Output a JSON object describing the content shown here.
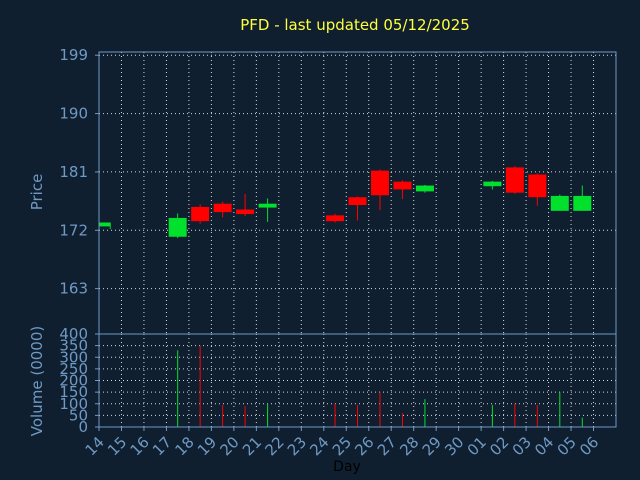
{
  "chart_data": {
    "type": "candlestick",
    "title": "PFD - last updated 05/12/2025",
    "xlabel": "Day",
    "colors": {
      "up": "#00e02c",
      "down": "#ff0000",
      "background": "#0f1f30",
      "axis": "#6f9ac4",
      "title": "#ffff3c",
      "grid": "#d8d8d8"
    },
    "days": [
      "14",
      "15",
      "16",
      "17",
      "18",
      "19",
      "20",
      "21",
      "22",
      "23",
      "24",
      "25",
      "26",
      "27",
      "28",
      "29",
      "30",
      "01",
      "02",
      "03",
      "04",
      "05",
      "06"
    ],
    "price_panel": {
      "ylabel": "Price",
      "yticks": [
        163,
        172,
        181,
        190,
        199
      ],
      "ylim": [
        156,
        199.5
      ],
      "candles": [
        {
          "day": "14",
          "open": 172.6,
          "high": 173.2,
          "low": 172.2,
          "close": 173.2
        },
        {
          "day": "17",
          "open": 171.0,
          "high": 174.6,
          "low": 170.8,
          "close": 173.9
        },
        {
          "day": "18",
          "open": 175.6,
          "high": 176.0,
          "low": 173.0,
          "close": 173.4
        },
        {
          "day": "19",
          "open": 176.1,
          "high": 176.4,
          "low": 174.0,
          "close": 174.8
        },
        {
          "day": "20",
          "open": 175.2,
          "high": 177.6,
          "low": 174.2,
          "close": 174.5
        },
        {
          "day": "21",
          "open": 175.5,
          "high": 176.9,
          "low": 173.3,
          "close": 176.1
        },
        {
          "day": "24",
          "open": 174.3,
          "high": 174.5,
          "low": 173.2,
          "close": 173.4
        },
        {
          "day": "25",
          "open": 177.1,
          "high": 177.2,
          "low": 173.5,
          "close": 175.9
        },
        {
          "day": "26",
          "open": 181.2,
          "high": 181.4,
          "low": 175.1,
          "close": 177.4
        },
        {
          "day": "27",
          "open": 179.5,
          "high": 179.7,
          "low": 176.8,
          "close": 178.3
        },
        {
          "day": "28",
          "open": 178.0,
          "high": 179.0,
          "low": 177.8,
          "close": 178.9
        },
        {
          "day": "01",
          "open": 178.8,
          "high": 179.6,
          "low": 178.3,
          "close": 179.5
        },
        {
          "day": "02",
          "open": 181.7,
          "high": 181.9,
          "low": 177.6,
          "close": 177.8
        },
        {
          "day": "03",
          "open": 180.6,
          "high": 180.8,
          "low": 175.8,
          "close": 177.1
        },
        {
          "day": "04",
          "open": 175.0,
          "high": 177.5,
          "low": 175.0,
          "close": 177.3
        },
        {
          "day": "05",
          "open": 175.0,
          "high": 178.9,
          "low": 175.0,
          "close": 177.3
        }
      ]
    },
    "volume_panel": {
      "ylabel": "Volume (0000)",
      "yticks": [
        0,
        50,
        100,
        150,
        200,
        250,
        300,
        350,
        400
      ],
      "ylim": [
        0,
        400
      ],
      "bars": [
        {
          "day": "17",
          "value": 330,
          "direction": "up"
        },
        {
          "day": "18",
          "value": 350,
          "direction": "down"
        },
        {
          "day": "19",
          "value": 95,
          "direction": "down"
        },
        {
          "day": "20",
          "value": 90,
          "direction": "down"
        },
        {
          "day": "21",
          "value": 100,
          "direction": "up"
        },
        {
          "day": "24",
          "value": 100,
          "direction": "down"
        },
        {
          "day": "25",
          "value": 95,
          "direction": "down"
        },
        {
          "day": "26",
          "value": 150,
          "direction": "down"
        },
        {
          "day": "27",
          "value": 60,
          "direction": "down"
        },
        {
          "day": "28",
          "value": 120,
          "direction": "up"
        },
        {
          "day": "01",
          "value": 95,
          "direction": "up"
        },
        {
          "day": "02",
          "value": 100,
          "direction": "down"
        },
        {
          "day": "03",
          "value": 95,
          "direction": "down"
        },
        {
          "day": "04",
          "value": 150,
          "direction": "up"
        },
        {
          "day": "05",
          "value": 40,
          "direction": "up"
        }
      ]
    }
  }
}
